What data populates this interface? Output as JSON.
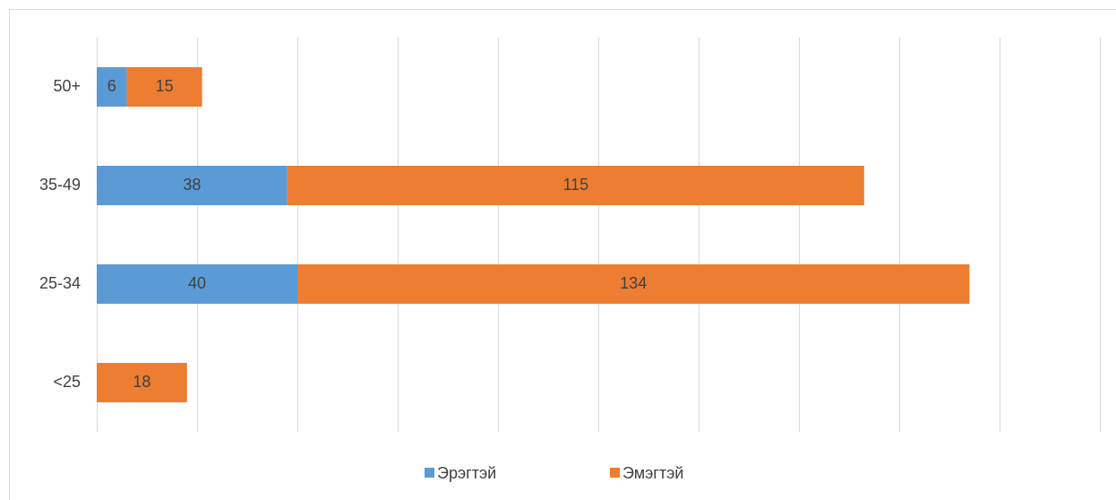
{
  "chart_data": {
    "type": "stacked-bar-horizontal",
    "categories": [
      "<25",
      "25-34",
      "35-49",
      "50+"
    ],
    "series": [
      {
        "name": "Эрэгтэй",
        "color": "#5b9bd5",
        "values": [
          null,
          40,
          38,
          6
        ]
      },
      {
        "name": "Эмэгтэй",
        "color": "#ed7d31",
        "values": [
          18,
          134,
          115,
          15
        ]
      }
    ],
    "xlim": [
      0,
      200
    ],
    "xticks": [
      0,
      20,
      40,
      60,
      80,
      100,
      120,
      140,
      160,
      180,
      200
    ],
    "grid": true,
    "legend": "bottom"
  }
}
